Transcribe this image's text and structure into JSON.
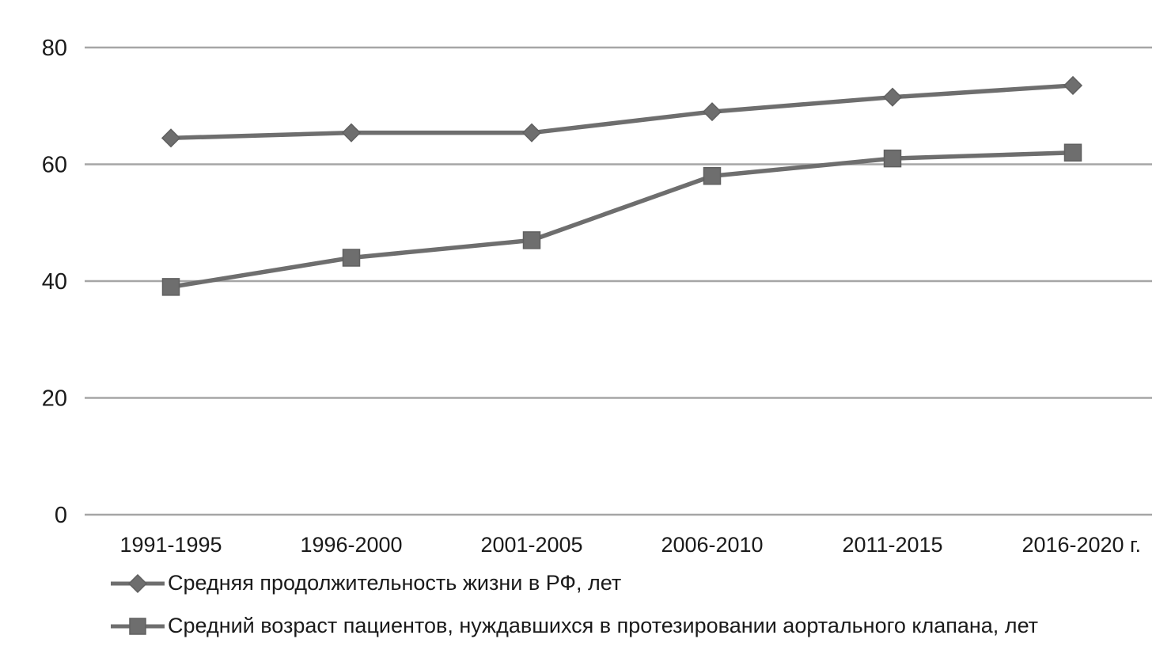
{
  "chart_data": {
    "type": "line",
    "title": "",
    "categories": [
      "1991-1995",
      "1996-2000",
      "2001-2005",
      "2006-2010",
      "2011-2015",
      "2016-2020"
    ],
    "x_axis_suffix": "г.",
    "series": [
      {
        "name": "Средняя продолжительность жизни в РФ, лет",
        "marker": "diamond",
        "values": [
          64.5,
          65.4,
          65.4,
          69,
          71.5,
          73.5
        ]
      },
      {
        "name": "Средний возраст пациентов, нуждавшихся в протезировании аортального клапана, лет",
        "marker": "square",
        "values": [
          39,
          44,
          47,
          58,
          61,
          62
        ]
      }
    ],
    "ylim": [
      0,
      80
    ],
    "yticks": [
      0,
      20,
      40,
      60,
      80
    ],
    "grid": true,
    "legend_position": "bottom-left",
    "colors": {
      "series": "#6e6e6e",
      "marker_edge": "#606060",
      "gridline": "#a6a6a6",
      "text": "#1a1a1a",
      "background": "#ffffff"
    }
  }
}
